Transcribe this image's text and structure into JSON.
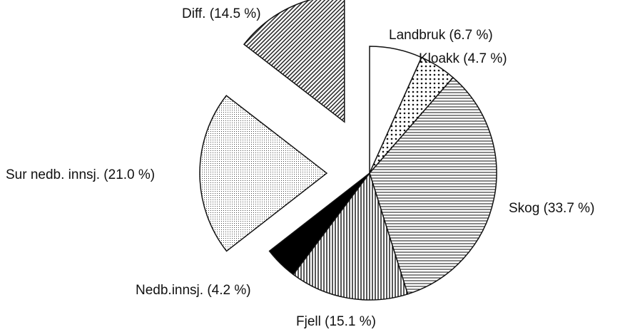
{
  "chart_data": {
    "type": "pie",
    "labels": [
      "Landbruk (6.7 %)",
      "Kloakk (4.7 %)",
      "Skog (33.7 %)",
      "Fjell (15.1 %)",
      "Nedb.innsj. (4.2 %)",
      "Sur nedb. innsj. (21.0 %)",
      "Diff. (14.5 %)"
    ],
    "values": [
      6.7,
      4.7,
      33.7,
      15.1,
      4.2,
      21.0,
      14.5
    ],
    "patterns": [
      "none",
      "dots",
      "horizontal",
      "vertical",
      "solid",
      "fine-dots",
      "diagonal"
    ],
    "exploded": [
      false,
      false,
      false,
      false,
      false,
      true,
      true
    ]
  }
}
